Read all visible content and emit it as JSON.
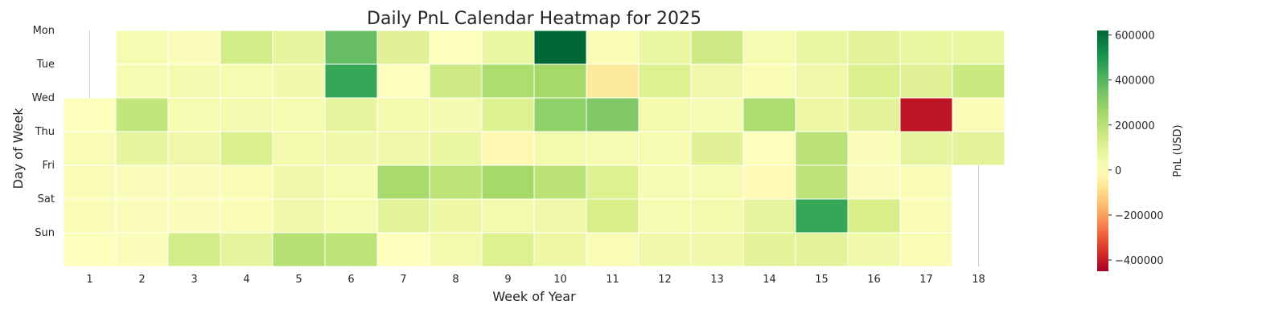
{
  "chart_data": {
    "type": "heatmap",
    "title": "Daily PnL Calendar Heatmap for 2025",
    "xlabel": "Week of Year",
    "ylabel": "Day of Week",
    "x_categories": [
      "1",
      "2",
      "3",
      "4",
      "5",
      "6",
      "7",
      "8",
      "9",
      "10",
      "11",
      "12",
      "13",
      "14",
      "15",
      "16",
      "17",
      "18"
    ],
    "y_categories": [
      "Mon",
      "Tue",
      "Wed",
      "Thu",
      "Fri",
      "Sat",
      "Sun"
    ],
    "colorbar": {
      "label": "PnL (USD)",
      "vmin": -450000,
      "vmax": 620000,
      "ticks": [
        -400000,
        -200000,
        0,
        200000,
        400000,
        600000
      ],
      "tick_labels": [
        "−400000",
        "−200000",
        "0",
        "200000",
        "400000",
        "600000"
      ],
      "colormap": "RdYlGn"
    },
    "grid": false,
    "rows": [
      [
        null,
        30000,
        15000,
        140000,
        80000,
        370000,
        100000,
        10000,
        70000,
        620000,
        20000,
        70000,
        150000,
        30000,
        70000,
        90000,
        70000,
        70000
      ],
      [
        null,
        25000,
        35000,
        30000,
        45000,
        450000,
        5000,
        150000,
        230000,
        250000,
        -60000,
        110000,
        50000,
        20000,
        50000,
        120000,
        100000,
        160000
      ],
      [
        10000,
        180000,
        30000,
        35000,
        30000,
        80000,
        40000,
        35000,
        110000,
        290000,
        320000,
        40000,
        25000,
        230000,
        60000,
        90000,
        -410000,
        20000
      ],
      [
        20000,
        80000,
        55000,
        120000,
        40000,
        50000,
        50000,
        70000,
        -20000,
        40000,
        30000,
        30000,
        100000,
        10000,
        200000,
        15000,
        80000,
        90000
      ],
      [
        20000,
        15000,
        15000,
        20000,
        50000,
        30000,
        240000,
        190000,
        250000,
        200000,
        110000,
        25000,
        30000,
        -15000,
        190000,
        15000,
        20000,
        null
      ],
      [
        20000,
        15000,
        15000,
        20000,
        50000,
        30000,
        90000,
        60000,
        40000,
        50000,
        130000,
        30000,
        40000,
        80000,
        450000,
        130000,
        20000,
        null
      ],
      [
        10000,
        15000,
        140000,
        80000,
        210000,
        190000,
        5000,
        40000,
        110000,
        60000,
        20000,
        50000,
        50000,
        90000,
        90000,
        50000,
        20000,
        null
      ]
    ]
  }
}
